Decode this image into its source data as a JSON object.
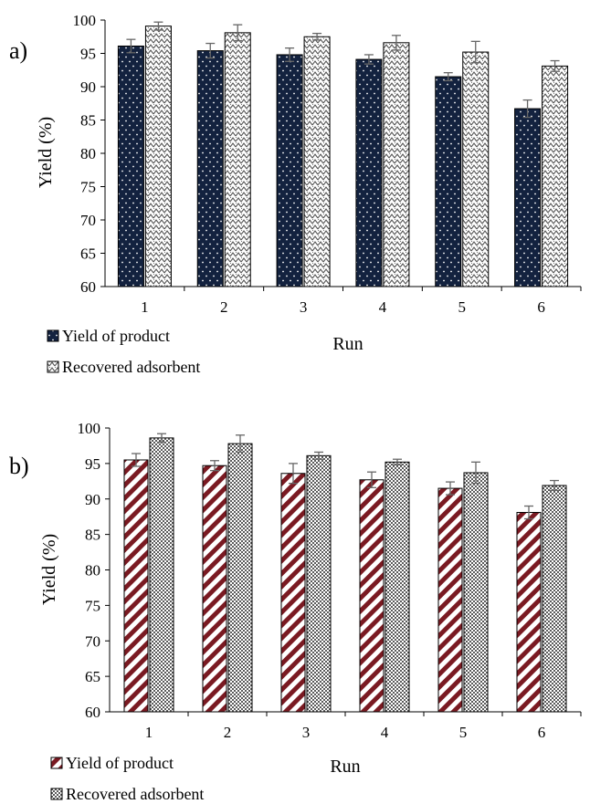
{
  "colors": {
    "product_a": "#13223f",
    "product_b": "#7a1a22",
    "adsorbent": "#4a4a4a",
    "axis": "#000000",
    "error_bar": "#666666"
  },
  "chart_data": [
    {
      "type": "bar",
      "panel_label": "a)",
      "categories": [
        "1",
        "2",
        "3",
        "4",
        "5",
        "6"
      ],
      "series": [
        {
          "name": "Yield of product",
          "pattern": "dotted-dark-navy",
          "values": [
            96.1,
            95.4,
            94.8,
            94.1,
            91.5,
            86.7
          ],
          "errors": [
            1.0,
            1.1,
            1.0,
            0.7,
            0.6,
            1.3
          ]
        },
        {
          "name": "Recovered adsorbent",
          "pattern": "dense-grey-texture",
          "values": [
            99.1,
            98.1,
            97.5,
            96.6,
            95.2,
            93.1
          ],
          "errors": [
            0.6,
            1.2,
            0.5,
            1.1,
            1.6,
            0.8
          ]
        }
      ],
      "xlabel": "Run",
      "ylabel": "Yield (%)",
      "ylim": [
        60,
        100
      ],
      "yticks": [
        60,
        65,
        70,
        75,
        80,
        85,
        90,
        95,
        100
      ],
      "grid": false,
      "legend": "bottom-left"
    },
    {
      "type": "bar",
      "panel_label": "b)",
      "categories": [
        "1",
        "2",
        "3",
        "4",
        "5",
        "6"
      ],
      "series": [
        {
          "name": "Yield of product",
          "pattern": "diagonal-stripes-maroon",
          "values": [
            95.5,
            94.7,
            93.6,
            92.7,
            91.5,
            88.1
          ],
          "errors": [
            0.9,
            0.7,
            1.4,
            1.1,
            0.9,
            0.9
          ]
        },
        {
          "name": "Recovered adsorbent",
          "pattern": "dense-grey-texture",
          "values": [
            98.6,
            97.8,
            96.1,
            95.2,
            93.7,
            91.9
          ],
          "errors": [
            0.6,
            1.2,
            0.5,
            0.4,
            1.5,
            0.7
          ]
        }
      ],
      "xlabel": "Run",
      "ylabel": "Yield (%)",
      "ylim": [
        60,
        100
      ],
      "yticks": [
        60,
        65,
        70,
        75,
        80,
        85,
        90,
        95,
        100
      ],
      "grid": false,
      "legend": "bottom-left"
    }
  ]
}
